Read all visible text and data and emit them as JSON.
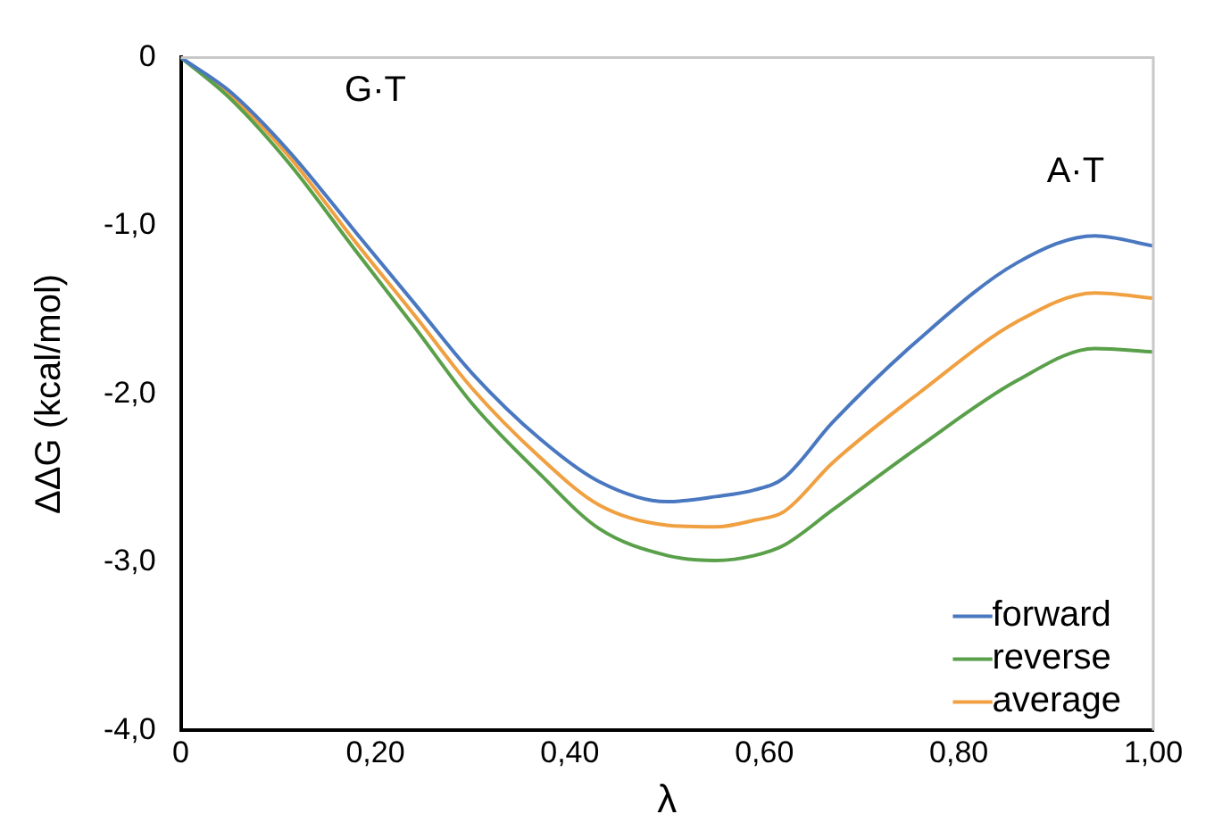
{
  "chart_data": {
    "type": "line",
    "xlabel": "λ",
    "ylabel": "ΔΔG (kcal/mol)",
    "xlim": [
      0,
      1
    ],
    "ylim": [
      -4,
      0
    ],
    "xticks": [
      0,
      {
        "value": 0.2,
        "label": "0,20"
      },
      {
        "value": 0.4,
        "label": "0,40"
      },
      {
        "value": 0.6,
        "label": "0,60"
      },
      {
        "value": 0.8,
        "label": "0,80"
      },
      {
        "value": 1,
        "label": "1,00"
      }
    ],
    "yticks": [
      0,
      {
        "value": -1,
        "label": "-1,0"
      },
      {
        "value": -2,
        "label": "-2,0"
      },
      {
        "value": -3,
        "label": "-3,0"
      },
      {
        "value": -4,
        "label": "-4,0"
      }
    ],
    "grid": false,
    "legend": "bottom right",
    "marker": "none",
    "line_style": "solid",
    "annotations": [
      "G·T",
      "A·T"
    ],
    "series": [
      {
        "name": "forward",
        "color": "#4a78c0",
        "x": [
          0,
          0.05,
          0.11,
          0.18,
          0.24,
          0.3,
          0.37,
          0.43,
          0.5,
          0.55,
          0.59,
          0.62,
          0.67,
          0.76,
          0.86,
          0.94,
          1
        ],
        "values": [
          0,
          -0.2,
          -0.55,
          -1.04,
          -1.46,
          -1.88,
          -2.27,
          -2.52,
          -2.64,
          -2.61,
          -2.57,
          -2.5,
          -2.17,
          -1.67,
          -1.22,
          -1.06,
          -1.12
        ]
      },
      {
        "name": "reverse",
        "color": "#5aa04a",
        "x": [
          0,
          0.05,
          0.11,
          0.18,
          0.24,
          0.3,
          0.37,
          0.43,
          0.5,
          0.55,
          0.59,
          0.62,
          0.67,
          0.76,
          0.86,
          0.94,
          1
        ],
        "values": [
          0,
          -0.24,
          -0.62,
          -1.15,
          -1.6,
          -2.06,
          -2.48,
          -2.8,
          -2.96,
          -2.99,
          -2.96,
          -2.9,
          -2.69,
          -2.31,
          -1.92,
          -1.73,
          -1.75
        ]
      },
      {
        "name": "average",
        "color": "#f0a040",
        "x": [
          0,
          0.05,
          0.11,
          0.18,
          0.24,
          0.3,
          0.37,
          0.43,
          0.5,
          0.55,
          0.59,
          0.62,
          0.67,
          0.76,
          0.86,
          0.94,
          1
        ],
        "values": [
          0,
          -0.22,
          -0.58,
          -1.1,
          -1.53,
          -1.97,
          -2.38,
          -2.66,
          -2.78,
          -2.79,
          -2.75,
          -2.7,
          -2.41,
          -1.99,
          -1.57,
          -1.4,
          -1.43
        ]
      }
    ]
  }
}
